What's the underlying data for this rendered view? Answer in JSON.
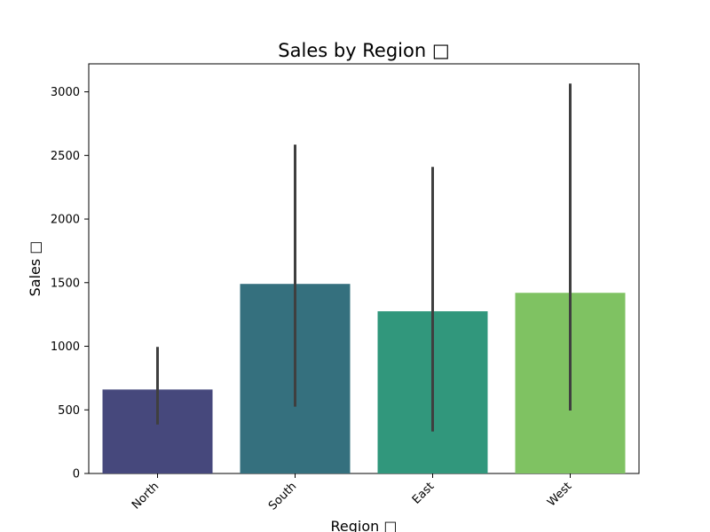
{
  "chart_data": {
    "type": "bar",
    "title": "Sales by Region □",
    "xlabel": "Region □",
    "ylabel": "Sales □",
    "categories": [
      "North",
      "South",
      "East",
      "West"
    ],
    "values": [
      660,
      1490,
      1275,
      1420
    ],
    "error_low": [
      385,
      525,
      330,
      495
    ],
    "error_high": [
      995,
      2585,
      2410,
      3065
    ],
    "colors": [
      "#46487c",
      "#35707e",
      "#31977c",
      "#7fc262"
    ],
    "error_color": "#3f3f3f",
    "yticks": [
      0,
      500,
      1000,
      1500,
      2000,
      2500,
      3000
    ],
    "ylim": [
      0,
      3220
    ],
    "grid": false,
    "legend": false
  }
}
